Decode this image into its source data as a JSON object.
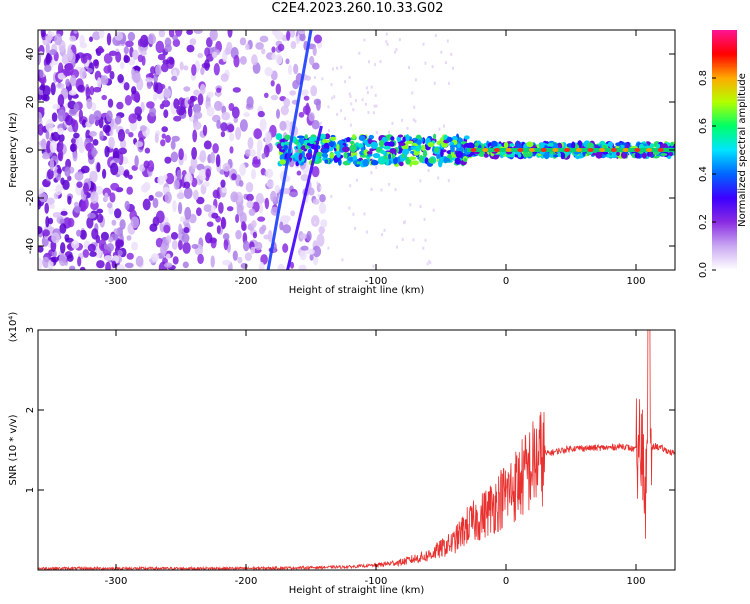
{
  "title": "C2E4.2023.260.10.33.G02",
  "chart_data": [
    {
      "type": "heatmap",
      "xlabel": "Height of straight line (km)",
      "ylabel": "Frequency (Hz)",
      "xlim": [
        -360,
        130
      ],
      "ylim": [
        -50,
        50
      ],
      "xticks": [
        -300,
        -200,
        -100,
        0,
        100
      ],
      "yticks": [
        -40,
        -20,
        0,
        20,
        40
      ],
      "colorbar": {
        "label": "Normalized spectral amplitude",
        "range": [
          0,
          1
        ],
        "ticks": [
          "0.0",
          "0.2",
          "0.4",
          "0.6",
          "0.8"
        ],
        "tick_values": [
          0.0,
          0.2,
          0.4,
          0.6,
          0.8
        ],
        "colors": [
          "#ffffff",
          "#c9a8f2",
          "#8a2be2",
          "#3c00ff",
          "#0066ff",
          "#00e5ff",
          "#00ff66",
          "#b4ff00",
          "#ffaa00",
          "#ff0000",
          "#ff1493"
        ]
      },
      "features": {
        "noise_region_x": [
          -360,
          -140
        ],
        "carrier_start_x": -175,
        "carrier_end_x": 130,
        "carrier_frequency": 0,
        "chirp_lines": [
          {
            "x": [
              -183,
              -150
            ],
            "y": [
              -50,
              50
            ]
          },
          {
            "x": [
              -168,
              -142
            ],
            "y": [
              -50,
              10
            ]
          }
        ]
      }
    },
    {
      "type": "line",
      "xlabel": "Height of straight line (km)",
      "ylabel": "SNR (10 * v/v)",
      "y_multiplier": "(x10⁴)",
      "xlim": [
        -360,
        130
      ],
      "ylim": [
        0,
        3
      ],
      "xticks": [
        -300,
        -200,
        -100,
        0,
        100
      ],
      "yticks": [
        1,
        2,
        3
      ],
      "color": "#e8302e",
      "envelope": {
        "x": [
          -360,
          -200,
          -150,
          -120,
          -100,
          -80,
          -60,
          -40,
          -30,
          -20,
          -10,
          0,
          10,
          20,
          30,
          50,
          80,
          90,
          100,
          105,
          108,
          110,
          115,
          130
        ],
        "y": [
          0.02,
          0.02,
          0.03,
          0.04,
          0.06,
          0.1,
          0.18,
          0.35,
          0.55,
          0.65,
          0.8,
          0.95,
          1.1,
          1.3,
          1.45,
          1.52,
          1.53,
          1.55,
          1.5,
          1.4,
          0.9,
          1.5,
          1.55,
          1.45
        ]
      }
    }
  ]
}
